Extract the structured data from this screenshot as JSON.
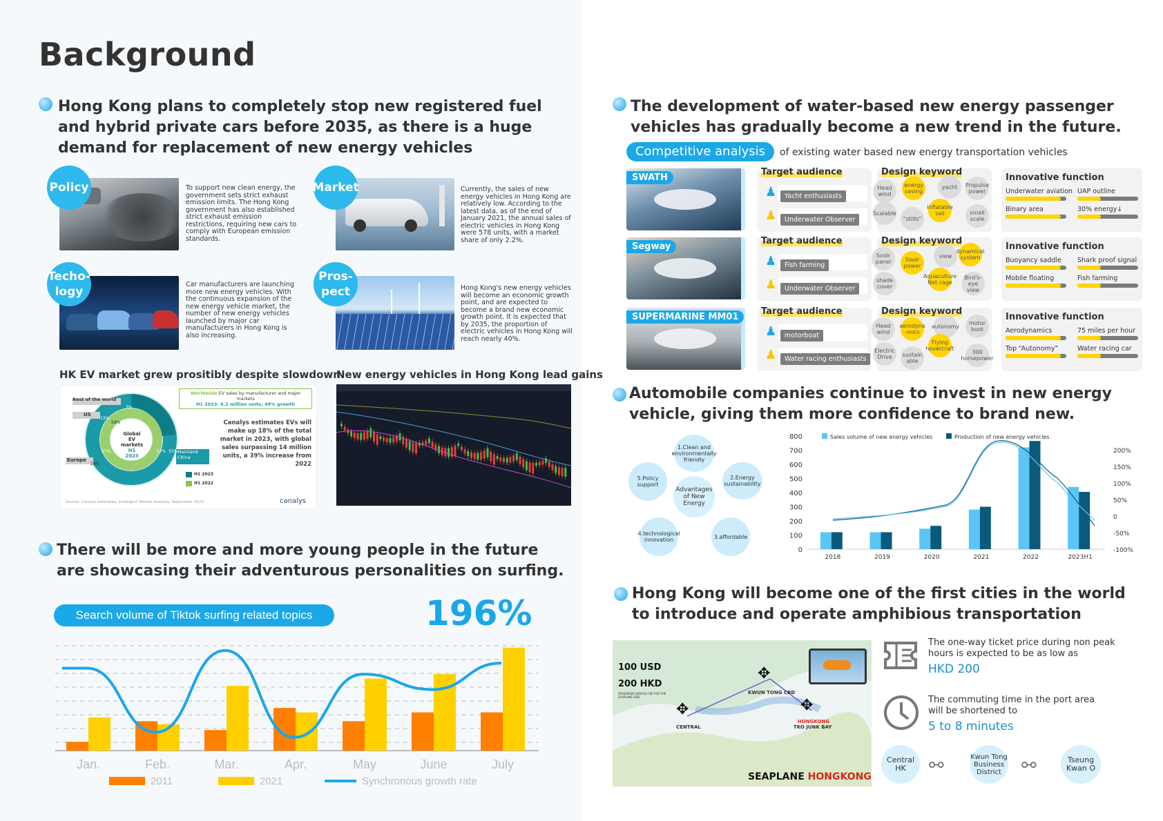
{
  "title": "Background",
  "left": {
    "heading1": "Hong Kong plans to completely stop new registered fuel and hybrid private cars before 2035, as there is a huge demand for replacement of new energy vehicles",
    "policy": {
      "badge": "Policy",
      "text": "To support new clean energy, the government sets strict exhaust emission limits. The Hong Kong government has also established strict exhaust emission restrictions, requiring new cars to comply with European emission standards."
    },
    "market": {
      "badge": "Market",
      "text": "Currently, the sales of new energy vehicles in Hong Kong are relatively low. According to the latest data, as of the end of January 2021, the annual sales of electric vehicles in Hong Kong were 578 units, with a market share of only 2.2%."
    },
    "techology": {
      "badge": "Techo-\nlogy",
      "text": "Car manufacturers are launching more new energy vehicles. With the continuous expansion of the new energy vehicle market, the number of new energy vehicles launched by major car manufacturers in Hong Kong is also increasing."
    },
    "prospect": {
      "badge": "Pros-\npect",
      "text": "Hong Kong's new energy vehicles will become an economic growth point, and are expected to become a brand new economic growth point. It is expected that by 2035, the proportion of electric vehicles in Hong Kong will reach nearly 40%."
    },
    "ev_chart": {
      "caption": "HK EV market grew prositibly despite slowdown",
      "box_title1": "Worldwide",
      "box_title2": " EV sales by manufacturer and major markets",
      "box_sub": "H1 2023: 6.2 million units, 49% growth",
      "center1": "Global EV",
      "center2": "markets",
      "center3": "H1 2023",
      "rest": "Rest of the world",
      "us": "US",
      "europe": "Europe",
      "china": "Mainland China",
      "p1": "7%",
      "p2": "13%",
      "p3": "58%",
      "p4": "27%",
      "p5": "24%",
      "p6": "57%",
      "p7": "55%",
      "note": "Canalys estimates EVs will make up 18% of the total market in 2023, with global sales surpassing 14 million units, a 39% increase from 2022",
      "legend1": "H1 2023",
      "legend2": "H1 2022",
      "source": "Source: Canalys estimates, Intelligent Vehicle Analysis, September 2023",
      "logo": "canalys"
    },
    "stock_chart": {
      "caption": "New energy vehicles in Hong Kong lead gains"
    },
    "heading2": "There will be more and more young people in the future are showcasing their adventurous personalities on surfing.",
    "surf": {
      "pill": "Search volume of Tiktok surfing related topics",
      "big": "196%",
      "legend_2011": "2011",
      "legend_2021": "2021",
      "legend_rate": "Synchronous growth rate"
    }
  },
  "right": {
    "heading1": "The development of water-based new energy passenger vehicles has gradually become a new trend in the future.",
    "comp_pill": "Competitive analysis",
    "comp_rest": "of existing water based new energy transportation vehicles",
    "target_title": "Target audience",
    "design_title": "Design keyword",
    "innov_title": "Innovative function",
    "rows": [
      {
        "name": "SWATH",
        "aud1": "Yacht enthusiasts",
        "aud2": "Underwater Observer",
        "kw": [
          "Head wind",
          "energy saving",
          "yacht",
          "Propulse power",
          "Inflatable sail",
          "Scalable",
          "\"stilts\"",
          "small scale"
        ],
        "f": [
          "Underwater aviation",
          "UAP outline",
          "Binary area",
          "30% energy↓"
        ]
      },
      {
        "name": "Segway",
        "aud1": "Fish farming",
        "aud2": "Underwater Observer",
        "kw": [
          "Soolr panel",
          "Soolr power",
          "view",
          "dynamical system",
          "shade cover",
          "Aquaculture Net cage",
          "Bird's-eye view"
        ],
        "f": [
          "Buoyancy saddle",
          "Shark proof signal",
          "Mobile floating",
          "Fish farming"
        ]
      },
      {
        "name": "SUPERMARINE MM01",
        "aud1": "motorboat",
        "aud2": "Water racing enthusiasts",
        "kw": [
          "Head wind",
          "aerodyna -mics",
          "autonomy",
          "motor boot",
          "Electric Drive",
          "Flying hovercraft",
          "sustain able",
          "300 horsepower"
        ],
        "f": [
          "Aerodynamics",
          "75 miles per hour",
          "Top “Autonomy”",
          "Water racing car"
        ]
      }
    ],
    "heading2": "Automobile companies continue to invest in new energy vehicle, giving them more confidence to brand new.",
    "advantages": {
      "center": "Advantages of New Energy",
      "items": [
        "1.Clean and environmentally friendly",
        "2.Energy sustainability",
        "3.affordable",
        "4.technological innovation",
        "5.Policy support"
      ]
    },
    "heading3": "Hong Kong will become one of the first cities in the world to introduce and operate amphibious transportation",
    "map": {
      "price1": "100 USD",
      "price2": "200 HKD",
      "fine": "PASSENGER SERVICE FEE FOR THE SEAPLANE RIDE",
      "central": "CENTRAL",
      "kwuntong": "KWUN TONG CBD",
      "hongkong": "HONGKONG",
      "tko": "TKO JUNK BAY",
      "brand1": "SEAPLANE ",
      "brand2": "HONGKONG"
    },
    "ticket_text": "The one-way ticket price during non peak hours is expected to be as low as",
    "ticket_val": "HKD 200",
    "time_text": "The commuting time in the port area will be shortened to",
    "time_val": "5 to 8 minutes",
    "stops": [
      "Central HK",
      "Kwun Tong Business District",
      "Tseung Kwan O"
    ]
  },
  "chart_data": [
    {
      "type": "bar",
      "title": "Search volume of Tiktok surfing related topics",
      "categories": [
        "Jan.",
        "Feb.",
        "Mar.",
        "Apr.",
        "May",
        "June",
        "July"
      ],
      "series": [
        {
          "name": "2011",
          "values": [
            12,
            40,
            28,
            58,
            40,
            52,
            52
          ],
          "color": "#ff7f00"
        },
        {
          "name": "2021",
          "values": [
            45,
            36,
            88,
            52,
            98,
            104,
            140
          ],
          "color": "#ffd000"
        },
        {
          "name": "Synchronous growth rate",
          "type": "line",
          "values": [
            112,
            25,
            136,
            18,
            104,
            83,
            119
          ],
          "color": "#1aa7e8"
        }
      ],
      "ylim": [
        0,
        150
      ]
    },
    {
      "type": "bar",
      "categories": [
        "2018",
        "2019",
        "2020",
        "2021",
        "2022",
        "2023H1"
      ],
      "series": [
        {
          "name": "Sales volume of new energy vehicles",
          "values": [
            120,
            120,
            145,
            280,
            720,
            440
          ],
          "color": "#5bc6f5"
        },
        {
          "name": "Production of new energy vehicles",
          "values": [
            120,
            120,
            165,
            300,
            765,
            405
          ],
          "color": "#0b5a7c"
        }
      ],
      "ylim": [
        0,
        800
      ],
      "yticks": [
        0,
        100,
        200,
        300,
        400,
        500,
        600,
        700,
        800
      ],
      "y2ticks": [
        "200%",
        "150%",
        "100%",
        "50%",
        "0",
        "-50%",
        "-100%"
      ]
    },
    {
      "type": "pie",
      "title": "Global EV markets H1 2023",
      "categories": [
        "Mainland China",
        "Europe",
        "US",
        "Rest of the world"
      ],
      "values": [
        57,
        24,
        13,
        7
      ]
    }
  ]
}
